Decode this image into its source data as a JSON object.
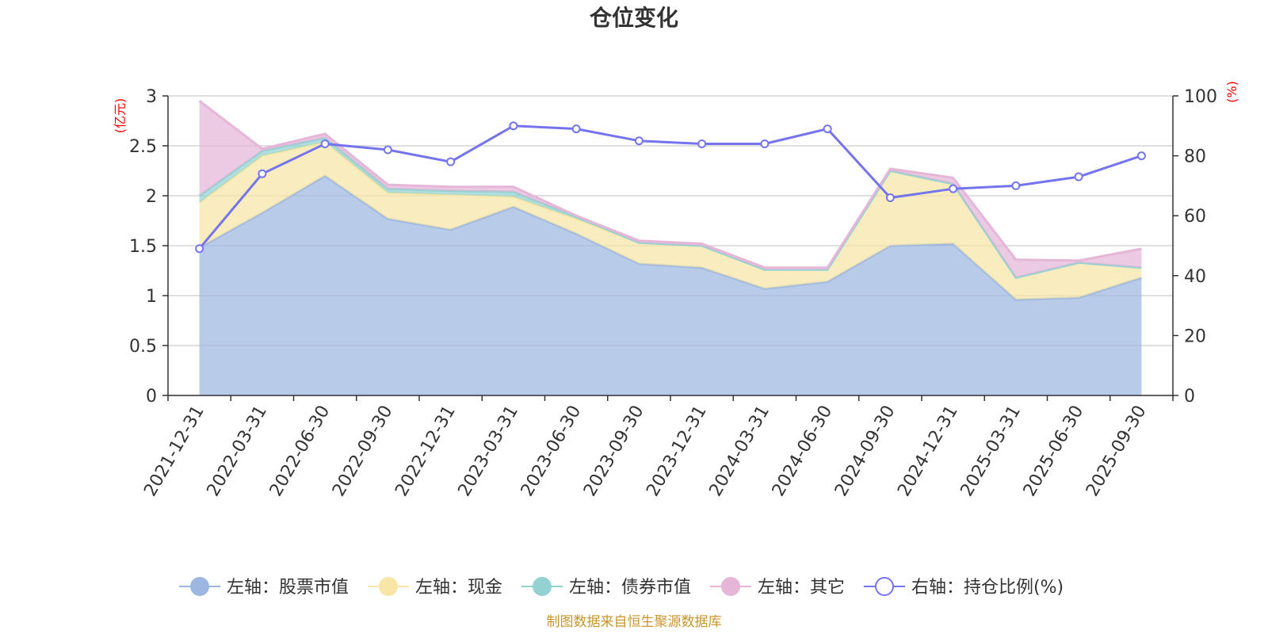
{
  "title": "仓位变化",
  "source_note": "制图数据来自恒生聚源数据库",
  "left_unit": "(亿元)",
  "right_unit": "(%)",
  "colors": {
    "stock": "#9db7e0",
    "cash": "#f7e6a6",
    "bond": "#93d2d2",
    "other": "#e5b6d8",
    "ratio": "#7474ee",
    "unit_label": "#ff0000",
    "source": "#c8962d"
  },
  "chart_data": {
    "type": "area",
    "title": "仓位变化",
    "x": [
      "2021-12-31",
      "2022-03-31",
      "2022-06-30",
      "2022-09-30",
      "2022-12-31",
      "2023-03-31",
      "2023-06-30",
      "2023-09-30",
      "2023-12-31",
      "2024-03-31",
      "2024-06-30",
      "2024-09-30",
      "2024-12-31",
      "2025-03-31",
      "2025-06-30",
      "2025-09-30"
    ],
    "left_axis": {
      "unit": "(亿元)",
      "ylim": [
        0,
        3
      ],
      "ticks": [
        "0",
        "0.5",
        "1",
        "1.5",
        "2",
        "2.5",
        "3"
      ]
    },
    "right_axis": {
      "unit": "(%)",
      "ylim": [
        0,
        100
      ],
      "ticks": [
        "0",
        "20",
        "40",
        "60",
        "80",
        "100"
      ]
    },
    "grid": true,
    "legend_position": "bottom",
    "series": [
      {
        "name": "左轴：股票市值",
        "axis": "left",
        "kind": "stacked-area",
        "color": "#9db7e0",
        "values": [
          1.48,
          1.83,
          2.2,
          1.77,
          1.66,
          1.89,
          1.62,
          1.32,
          1.28,
          1.07,
          1.14,
          1.5,
          1.52,
          0.96,
          0.98,
          1.18
        ]
      },
      {
        "name": "左轴：现金",
        "axis": "left",
        "kind": "stacked-area",
        "color": "#f7e6a6",
        "values": [
          0.45,
          0.57,
          0.34,
          0.26,
          0.35,
          0.1,
          0.15,
          0.21,
          0.22,
          0.19,
          0.12,
          0.75,
          0.6,
          0.22,
          0.35,
          0.1
        ]
      },
      {
        "name": "左轴：债券市值",
        "axis": "left",
        "kind": "stacked-area",
        "color": "#93d2d2",
        "values": [
          0.07,
          0.05,
          0.04,
          0.04,
          0.04,
          0.05,
          0.02,
          0.0,
          0.0,
          0.0,
          0.0,
          0.0,
          0.0,
          0.0,
          0.0,
          0.0
        ]
      },
      {
        "name": "左轴：其它",
        "axis": "left",
        "kind": "stacked-area",
        "color": "#e5b6d8",
        "values": [
          0.95,
          0.02,
          0.04,
          0.04,
          0.04,
          0.05,
          0.01,
          0.02,
          0.02,
          0.02,
          0.02,
          0.02,
          0.06,
          0.18,
          0.02,
          0.19
        ]
      },
      {
        "name": "右轴：持仓比例(%)",
        "axis": "right",
        "kind": "line",
        "color": "#7474ee",
        "values": [
          49,
          74,
          84,
          82,
          78,
          90,
          89,
          85,
          84,
          84,
          89,
          66,
          69,
          70,
          73,
          80
        ]
      }
    ]
  }
}
